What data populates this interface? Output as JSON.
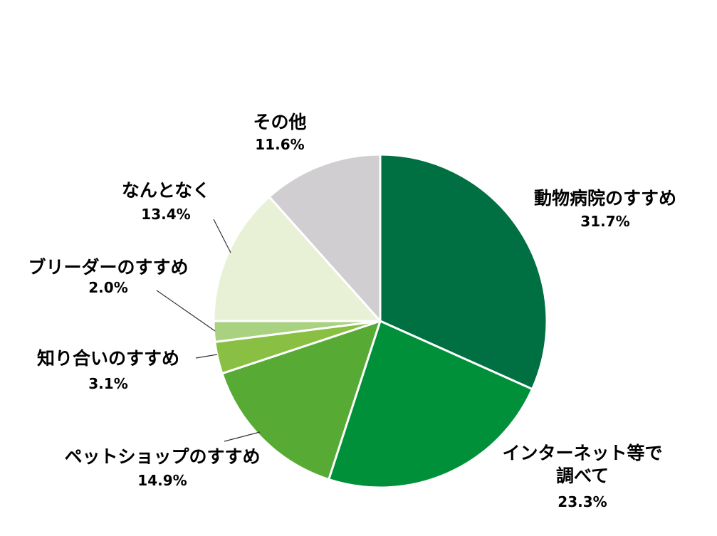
{
  "chart_data": {
    "type": "pie",
    "title": "",
    "start": "12 o'clock",
    "direction": "clockwise",
    "slices": [
      {
        "label": "動物病院のすすめ",
        "value": 31.7,
        "display": "31.7%",
        "color": "#006f42"
      },
      {
        "label": "インターネット等で調べて",
        "value": 23.3,
        "display": "23.3%",
        "color": "#009039"
      },
      {
        "label": "ペットショップのすすめ",
        "value": 14.9,
        "display": "14.9%",
        "color": "#57aa34"
      },
      {
        "label": "知り合いのすすめ",
        "value": 3.1,
        "display": "3.1%",
        "color": "#89c043"
      },
      {
        "label": "ブリーダーのすすめ",
        "value": 2.0,
        "display": "2.0%",
        "color": "#a8d180"
      },
      {
        "label": "なんとなく",
        "value": 13.4,
        "display": "13.4%",
        "color": "#e8f1d6"
      },
      {
        "label": "その他",
        "value": 11.6,
        "display": "11.6%",
        "color": "#d0ced1"
      }
    ]
  }
}
